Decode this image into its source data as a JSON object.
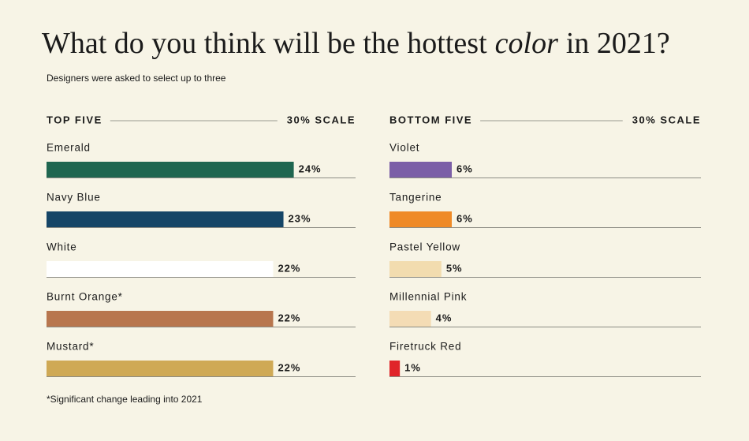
{
  "title": [
    "What do you think will be the hottest",
    "color",
    "in 2021?"
  ],
  "subtitle": "Designers were asked to select up to three",
  "note": "*Significant change leading into 2021",
  "chart_data": [
    {
      "type": "bar",
      "orientation": "horizontal",
      "title": "TOP FIVE",
      "scale_label": "30% SCALE",
      "categories": [
        "Emerald",
        "Navy Blue",
        "White",
        "Burnt Orange*",
        "Mustard*"
      ],
      "values": [
        24,
        23,
        22,
        22,
        22
      ],
      "value_labels": [
        "24%",
        "23%",
        "22%",
        "22%",
        "22%"
      ],
      "colors": [
        "#1f6650",
        "#154567",
        "#ffffff",
        "#b8764e",
        "#cfa955"
      ],
      "xlim": [
        0,
        30
      ]
    },
    {
      "type": "bar",
      "orientation": "horizontal",
      "title": "BOTTOM FIVE",
      "scale_label": "30% SCALE",
      "categories": [
        "Violet",
        "Tangerine",
        "Pastel Yellow",
        "Millennial Pink",
        "Firetruck Red"
      ],
      "values": [
        6,
        6,
        5,
        4,
        1
      ],
      "value_labels": [
        "6%",
        "6%",
        "5%",
        "4%",
        "1%"
      ],
      "colors": [
        "#7b5ea7",
        "#ef8a27",
        "#f2dcaf",
        "#f4dcb5",
        "#e0242a"
      ],
      "xlim": [
        0,
        30
      ]
    }
  ]
}
